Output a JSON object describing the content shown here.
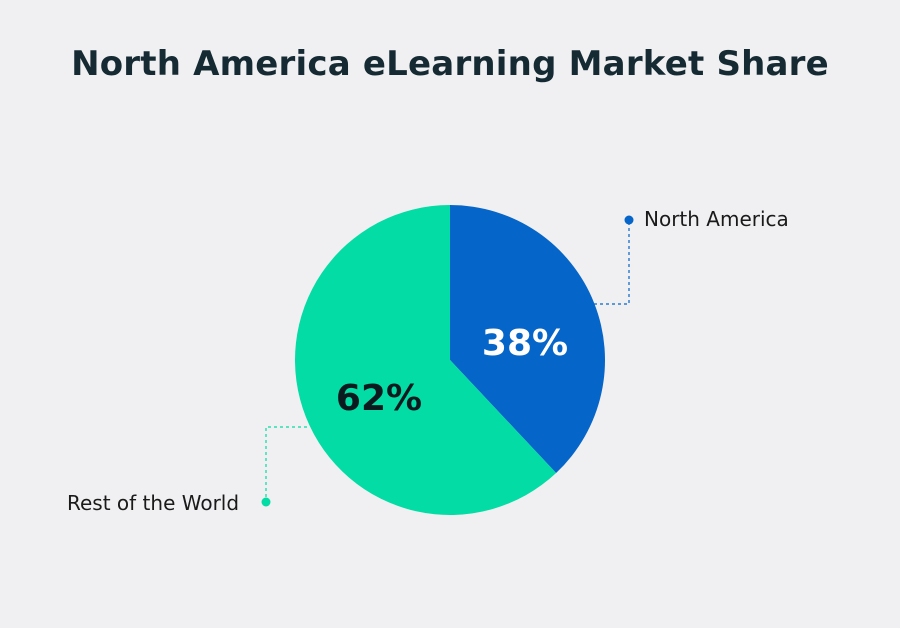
{
  "chart_data": {
    "type": "pie",
    "title": "North America eLearning Market Share",
    "slices": [
      {
        "name": "North America",
        "value": 38,
        "label": "38%",
        "color": "#0565c8",
        "label_color": "#ffffff"
      },
      {
        "name": "Rest of the World",
        "value": 62,
        "label": "62%",
        "color": "#03dca4",
        "label_color": "#0b1a1f"
      }
    ],
    "legend": {
      "north_america": "North America",
      "rest_of_world": "Rest of the World"
    },
    "colors": {
      "north_america": "#0565c8",
      "rest_of_world": "#03dca4",
      "background": "#f0f0f2",
      "title": "#152a33"
    }
  }
}
